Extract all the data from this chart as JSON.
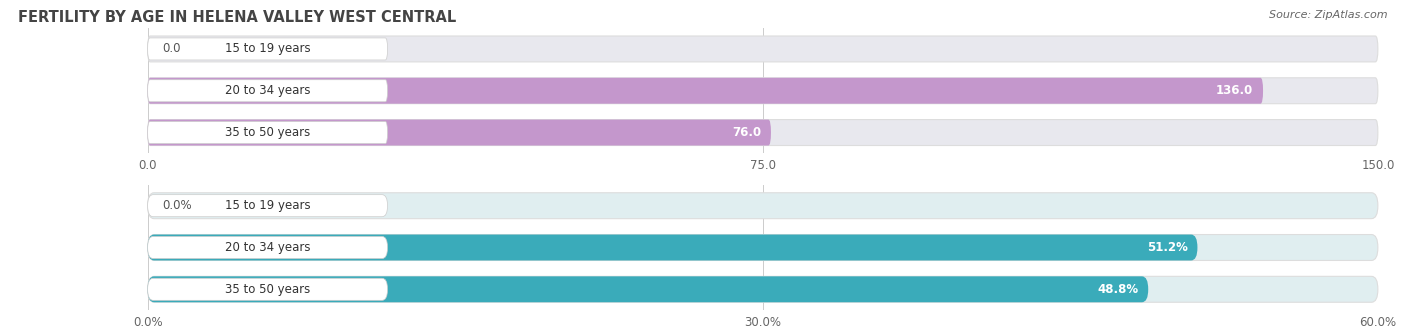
{
  "title": "FERTILITY BY AGE IN HELENA VALLEY WEST CENTRAL",
  "source": "Source: ZipAtlas.com",
  "top_chart": {
    "categories": [
      "15 to 19 years",
      "20 to 34 years",
      "35 to 50 years"
    ],
    "values": [
      0.0,
      136.0,
      76.0
    ],
    "xlim": [
      0,
      150
    ],
    "xticks": [
      0.0,
      75.0,
      150.0
    ],
    "xtick_labels": [
      "0.0",
      "75.0",
      "150.0"
    ],
    "bar_color": "#c497cc",
    "bar_bg_color": "#e8e8ee",
    "bar_height": 0.62
  },
  "bottom_chart": {
    "categories": [
      "15 to 19 years",
      "20 to 34 years",
      "35 to 50 years"
    ],
    "values": [
      0.0,
      51.2,
      48.8
    ],
    "xlim": [
      0,
      60
    ],
    "xticks": [
      0.0,
      30.0,
      60.0
    ],
    "xtick_labels": [
      "0.0%",
      "30.0%",
      "60.0%"
    ],
    "bar_color": "#3aabba",
    "bar_bg_color": "#e0eef0",
    "bar_height": 0.62
  },
  "label_color": "#555555",
  "bg_color": "#ffffff",
  "fig_width": 14.06,
  "fig_height": 3.3
}
